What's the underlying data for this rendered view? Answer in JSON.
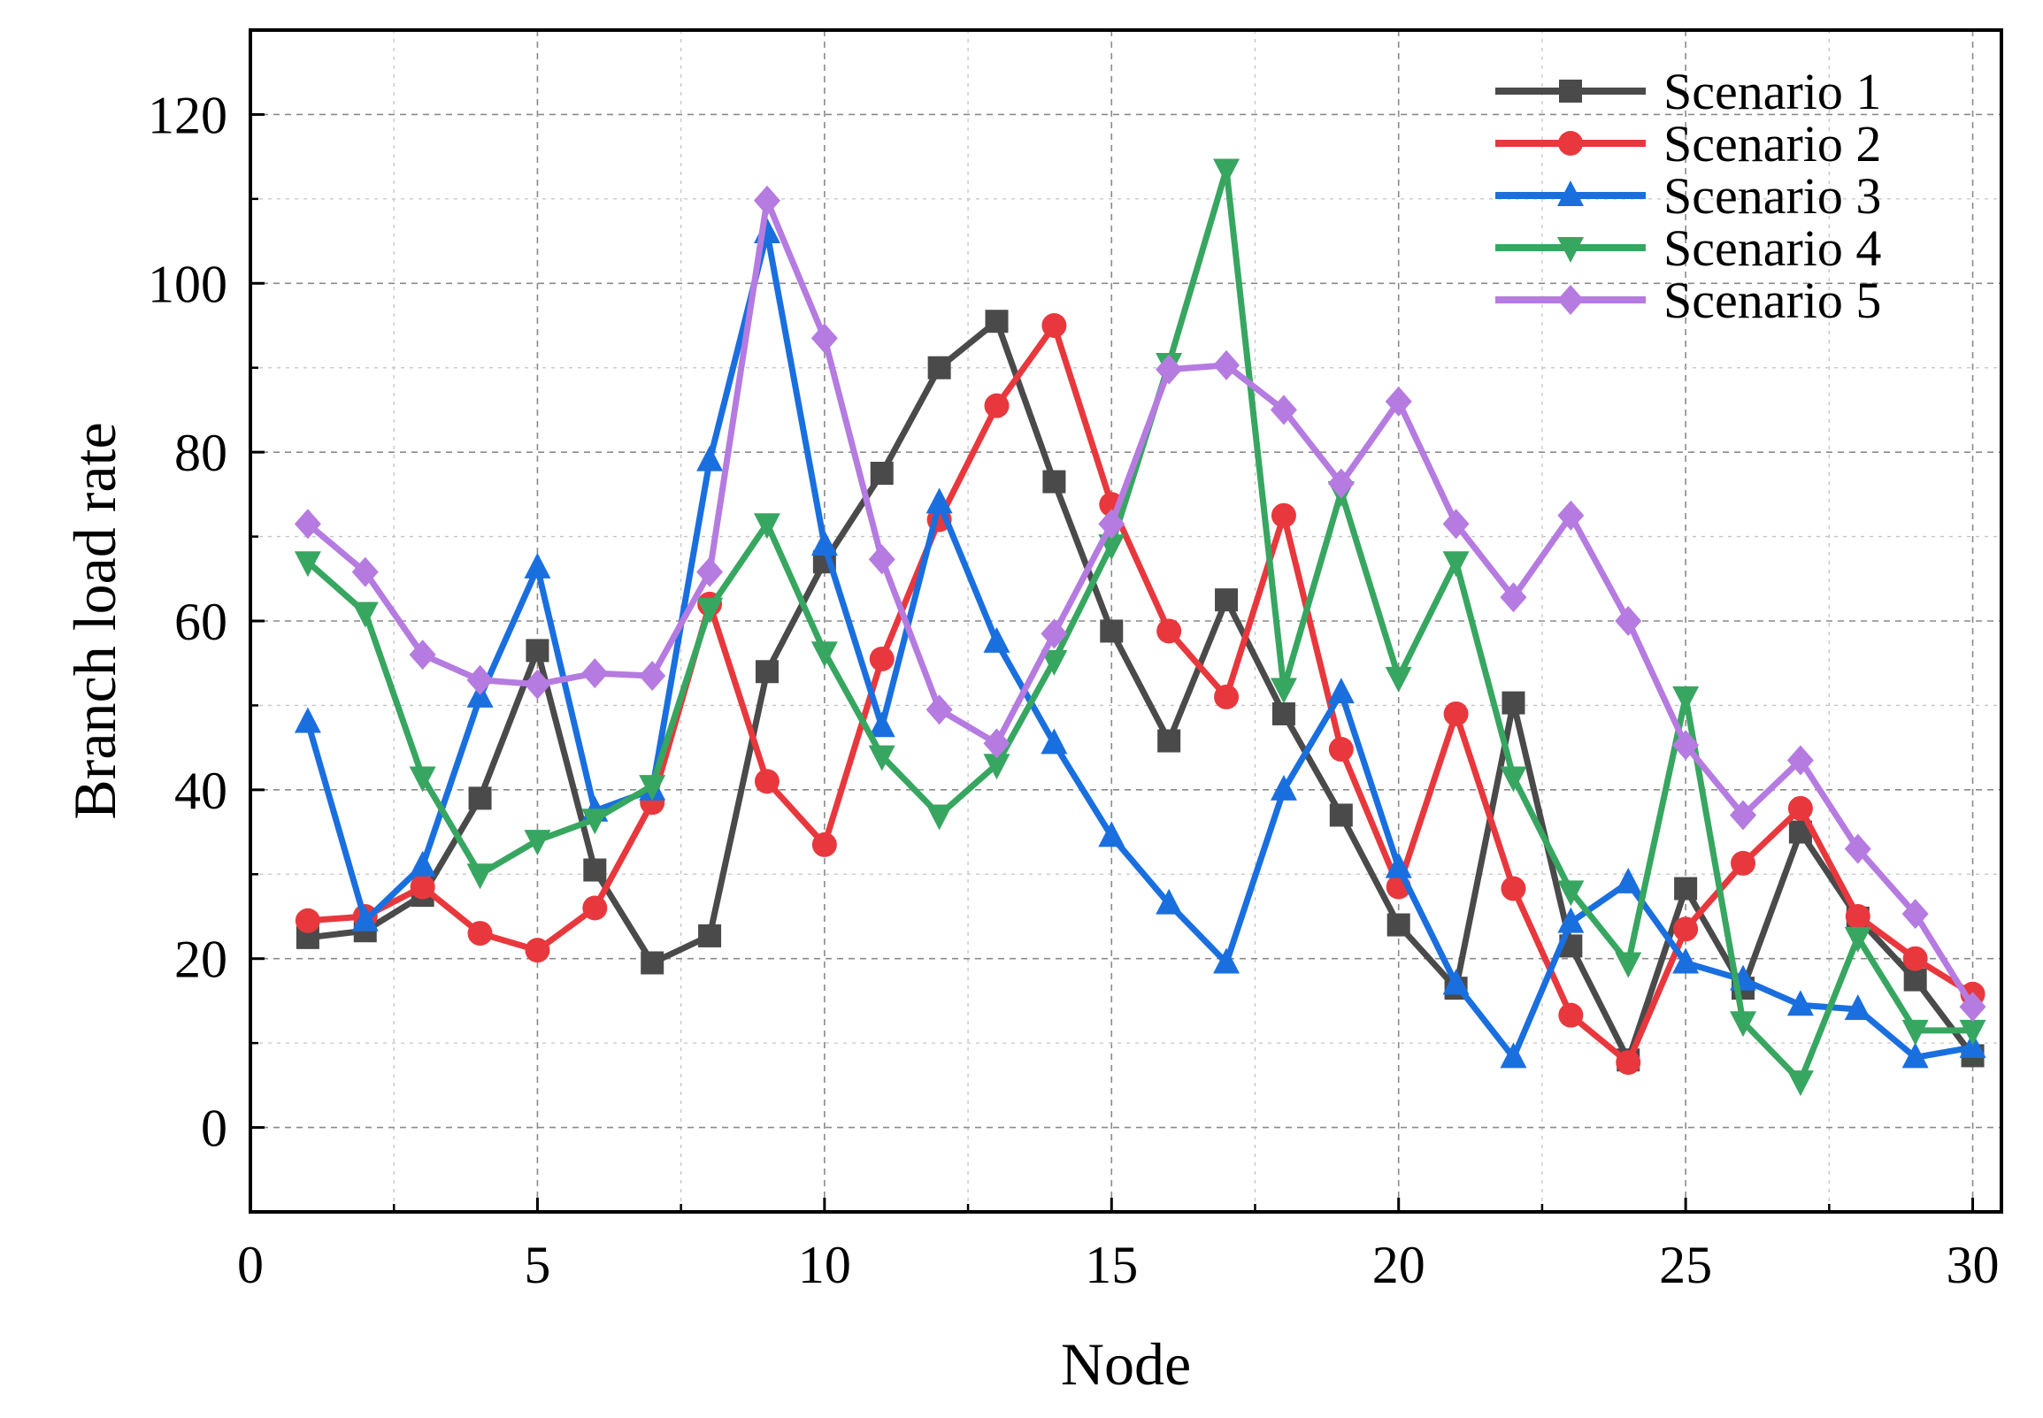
{
  "chart_data": {
    "type": "line",
    "title": "",
    "xlabel": "Node",
    "ylabel": "Branch load rate",
    "xlim": [
      0,
      30.5
    ],
    "ylim": [
      -10,
      130
    ],
    "x_ticks": [
      0,
      5,
      10,
      15,
      20,
      25,
      30
    ],
    "y_ticks": [
      0,
      20,
      40,
      60,
      80,
      100,
      120
    ],
    "x_tick_labels": [
      "0",
      "5",
      "10",
      "15",
      "20",
      "25",
      "30"
    ],
    "y_tick_labels": [
      "0",
      "20",
      "40",
      "60",
      "80",
      "100",
      "120"
    ],
    "grid": true,
    "legend_position": "top-right",
    "x": [
      1,
      2,
      3,
      4,
      5,
      6,
      7,
      8,
      9,
      10,
      11,
      12,
      13,
      14,
      15,
      16,
      17,
      18,
      19,
      20,
      21,
      22,
      23,
      24,
      25,
      26,
      27,
      28,
      29,
      30
    ],
    "series": [
      {
        "name": "Scenario 1",
        "color": "#4a4a4a",
        "marker": "square",
        "values": [
          22.5,
          23.3,
          27.5,
          39,
          56.5,
          30.5,
          19.5,
          22.7,
          54,
          67,
          77.5,
          90,
          95.5,
          76.5,
          58.8,
          45.8,
          62.5,
          49,
          37,
          24,
          16.5,
          50.3,
          21.5,
          8,
          28.3,
          16.5,
          35,
          24.8,
          17.5,
          8.5
        ]
      },
      {
        "name": "Scenario 2",
        "color": "#e8383d",
        "marker": "circle",
        "values": [
          24.5,
          25,
          28.5,
          23,
          21,
          26,
          38.5,
          62,
          41,
          33.5,
          55.5,
          72,
          85.5,
          95,
          73.8,
          58.8,
          51,
          72.5,
          44.8,
          28.5,
          49,
          28.3,
          13.3,
          7.7,
          23.5,
          31.3,
          37.8,
          25,
          20,
          15.8
        ]
      },
      {
        "name": "Scenario 3",
        "color": "#1a6fdf",
        "marker": "triangle-up",
        "values": [
          48,
          24.5,
          31,
          51,
          66.3,
          37.5,
          40,
          79,
          106,
          69,
          47.5,
          74,
          57.5,
          45.5,
          34.5,
          26.5,
          19.5,
          40,
          51.5,
          30.8,
          17,
          8.3,
          24.3,
          29,
          19.5,
          17.5,
          14.5,
          14,
          8.3,
          9.5
        ]
      },
      {
        "name": "Scenario 4",
        "color": "#37a660",
        "marker": "triangle-down",
        "values": [
          67,
          61,
          41.5,
          30,
          34,
          36.5,
          40.5,
          61.5,
          71.5,
          56.3,
          44,
          37,
          43,
          55.3,
          69,
          90.5,
          113.5,
          52,
          75.3,
          53.3,
          67,
          41.5,
          28,
          19.5,
          51,
          12.5,
          5.5,
          22.5,
          11.5,
          11.5
        ]
      },
      {
        "name": "Scenario 5",
        "color": "#b57be0",
        "marker": "diamond",
        "values": [
          71.5,
          65.8,
          56,
          53,
          52.5,
          53.8,
          53.5,
          65.8,
          109.8,
          93.5,
          67.3,
          49.5,
          45.5,
          58.5,
          71.5,
          89.8,
          90.3,
          85,
          76.3,
          86,
          71.5,
          62.8,
          72.5,
          60,
          45.3,
          37,
          43.5,
          33,
          25.3,
          14.3
        ]
      }
    ]
  }
}
